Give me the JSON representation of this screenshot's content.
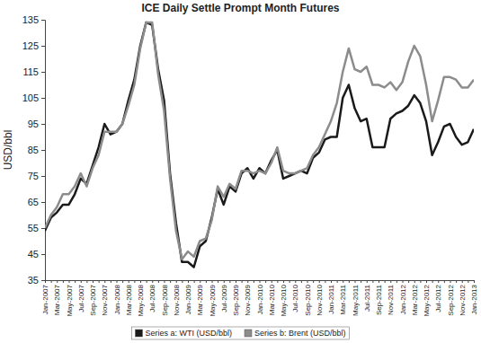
{
  "chart_data": {
    "type": "line",
    "title": "ICE Daily Settle Prompt Month Futures",
    "y_label": "USD/bbl",
    "categories": [
      "Jan-2007",
      null,
      "Mar-2007",
      null,
      "May-2007",
      null,
      "Jul-2007",
      null,
      "Sep-2007",
      null,
      "Nov-2007",
      null,
      "Jan-2008",
      null,
      "Mar-2008",
      null,
      "May-2008",
      null,
      "Jul-2008",
      null,
      "Sep-2008",
      null,
      "Nov-2008",
      null,
      "Jan-2009",
      null,
      "Mar-2009",
      null,
      "May-2009",
      null,
      "Jul-2009",
      null,
      "Sep-2009",
      null,
      "Nov-2009",
      null,
      "Jan-2010",
      null,
      "Mar-2010",
      null,
      "May-2010",
      null,
      "Jul-2010",
      null,
      "Sep-2010",
      null,
      "Nov-2010",
      null,
      "Jan-2011",
      null,
      "Mar-2011",
      null,
      "May-2011",
      null,
      "Jul-2011",
      null,
      "Sep-2011",
      null,
      "Nov-2011",
      null,
      "Jan-2012",
      null,
      "Mar-2012",
      null,
      "May-2012",
      null,
      "Jul-2012",
      null,
      "Sep-2012",
      null,
      "Nov-2012",
      null,
      "Jan-2013"
    ],
    "series": [
      {
        "name": "Series a: WTI (USD/bbl)",
        "color": "#1a1a1a",
        "values": [
          54,
          59,
          61,
          64,
          64,
          68,
          74,
          72,
          79,
          86,
          95,
          91,
          92,
          95,
          104,
          112,
          125,
          134,
          133,
          116,
          104,
          76,
          57,
          42,
          42,
          40,
          48,
          50,
          59,
          70,
          64,
          71,
          69,
          76,
          78,
          74,
          78,
          76,
          81,
          85,
          74,
          75,
          76,
          77,
          76,
          82,
          84,
          89,
          90,
          90,
          105,
          110,
          101,
          96,
          97,
          86,
          86,
          86,
          97,
          99,
          100,
          102,
          106,
          103,
          96,
          83,
          88,
          94,
          95,
          90,
          87,
          88,
          93
        ]
      },
      {
        "name": "Series b: Brent (USD/bbl)",
        "color": "#8c8c8c",
        "values": [
          55,
          60,
          63,
          68,
          68,
          71,
          76,
          71,
          78,
          83,
          92,
          92,
          92,
          95,
          102,
          110,
          124,
          134,
          134,
          114,
          100,
          74,
          54,
          43,
          46,
          44,
          50,
          51,
          58,
          71,
          67,
          72,
          70,
          77,
          77,
          76,
          77,
          76,
          80,
          86,
          77,
          76,
          76,
          77,
          78,
          83,
          86,
          91,
          96,
          103,
          115,
          124,
          116,
          115,
          117,
          110,
          110,
          109,
          111,
          108,
          111,
          119,
          125,
          121,
          110,
          96,
          104,
          113,
          113,
          112,
          109,
          109,
          112
        ]
      }
    ],
    "ylim": [
      35,
      135
    ],
    "yticks": [
      35,
      45,
      55,
      65,
      75,
      85,
      95,
      105,
      115,
      125,
      135
    ],
    "grid": false,
    "legend": "bottom"
  }
}
